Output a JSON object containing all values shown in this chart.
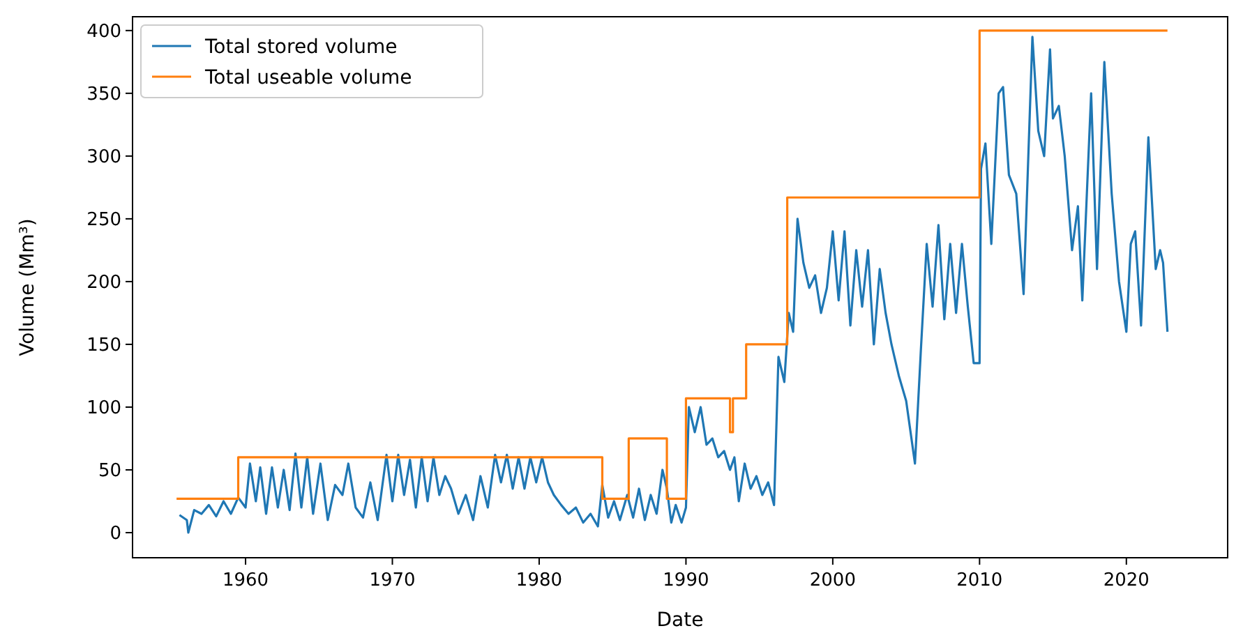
{
  "chart_data": {
    "type": "line",
    "xlabel": "Date",
    "ylabel": "Volume (Mm³)",
    "xlim": [
      1952.3,
      2026.9
    ],
    "ylim": [
      -20,
      411
    ],
    "xticks": [
      1960,
      1970,
      1980,
      1990,
      2000,
      2010,
      2020
    ],
    "yticks": [
      0,
      50,
      100,
      150,
      200,
      250,
      300,
      350,
      400
    ],
    "grid": false,
    "legend": "top left",
    "series": [
      {
        "name": "Total stored volume",
        "color": "#1f77b4",
        "x": [
          1955.5,
          1956,
          1956.1,
          1956.5,
          1957,
          1957.5,
          1958,
          1958.5,
          1959,
          1959.5,
          1960,
          1960.3,
          1960.7,
          1961,
          1961.4,
          1961.8,
          1962.2,
          1962.6,
          1963,
          1963.4,
          1963.8,
          1964.2,
          1964.6,
          1965.1,
          1965.6,
          1966.1,
          1966.6,
          1967,
          1967.5,
          1968,
          1968.5,
          1969,
          1969.6,
          1970,
          1970.4,
          1970.8,
          1971.2,
          1971.6,
          1972,
          1972.4,
          1972.8,
          1973.2,
          1973.6,
          1974,
          1974.5,
          1975,
          1975.5,
          1976,
          1976.5,
          1977,
          1977.4,
          1977.8,
          1978.2,
          1978.6,
          1979,
          1979.4,
          1979.8,
          1980.2,
          1980.6,
          1981,
          1981.5,
          1982,
          1982.5,
          1983,
          1983.5,
          1984,
          1984.3,
          1984.7,
          1985.1,
          1985.5,
          1986,
          1986.4,
          1986.8,
          1987.2,
          1987.6,
          1988,
          1988.4,
          1988.7,
          1989,
          1989.3,
          1989.7,
          1990,
          1990.2,
          1990.6,
          1991,
          1991.4,
          1991.8,
          1992.2,
          1992.6,
          1993,
          1993.3,
          1993.6,
          1994,
          1994.4,
          1994.8,
          1995.2,
          1995.6,
          1996,
          1996.3,
          1996.7,
          1997,
          1997.3,
          1997.6,
          1998,
          1998.4,
          1998.8,
          1999.2,
          1999.6,
          2000,
          2000.4,
          2000.8,
          2001.2,
          2001.6,
          2002,
          2002.4,
          2002.8,
          2003.2,
          2003.6,
          2004,
          2004.5,
          2005,
          2005.6,
          2006,
          2006.4,
          2006.8,
          2007.2,
          2007.6,
          2008,
          2008.4,
          2008.8,
          2009.2,
          2009.6,
          2010,
          2010.1,
          2010.4,
          2010.8,
          2011.3,
          2011.6,
          2012,
          2012.5,
          2013,
          2013.6,
          2014,
          2014.4,
          2014.8,
          2015,
          2015.4,
          2015.8,
          2016.3,
          2016.7,
          2017,
          2017.6,
          2018,
          2018.5,
          2019,
          2019.5,
          2020,
          2020.3,
          2020.6,
          2021,
          2021.5,
          2022,
          2022.3,
          2022.5,
          2022.8
        ],
        "values": [
          14,
          10,
          0,
          18,
          15,
          22,
          13,
          25,
          15,
          28,
          20,
          55,
          25,
          52,
          15,
          52,
          20,
          50,
          18,
          63,
          20,
          60,
          15,
          55,
          10,
          38,
          30,
          55,
          20,
          12,
          40,
          10,
          62,
          25,
          62,
          30,
          58,
          20,
          60,
          25,
          60,
          30,
          45,
          35,
          15,
          30,
          10,
          45,
          20,
          62,
          40,
          62,
          35,
          60,
          35,
          60,
          40,
          60,
          40,
          30,
          22,
          15,
          20,
          8,
          15,
          5,
          38,
          12,
          25,
          10,
          30,
          12,
          35,
          10,
          30,
          15,
          50,
          35,
          8,
          22,
          8,
          20,
          100,
          80,
          100,
          70,
          75,
          60,
          65,
          50,
          60,
          25,
          55,
          35,
          45,
          30,
          40,
          22,
          140,
          120,
          175,
          160,
          250,
          215,
          195,
          205,
          175,
          195,
          240,
          185,
          240,
          165,
          225,
          180,
          225,
          150,
          210,
          175,
          150,
          125,
          105,
          55,
          145,
          230,
          180,
          245,
          170,
          230,
          175,
          230,
          180,
          135,
          135,
          290,
          310,
          230,
          350,
          355,
          285,
          270,
          190,
          395,
          320,
          300,
          385,
          330,
          340,
          300,
          225,
          260,
          185,
          350,
          210,
          375,
          270,
          200,
          160,
          230,
          240,
          165,
          315,
          210,
          225,
          215,
          160
        ]
      },
      {
        "name": "Total useable volume",
        "color": "#ff7f0e",
        "type": "step",
        "x": [
          1955.3,
          1959.5,
          1984.3,
          1986.1,
          1988.7,
          1990.0,
          1993.0,
          1993.2,
          1994.1,
          1996.9,
          2010.0,
          2022.8
        ],
        "values": [
          27,
          60,
          27,
          75,
          27,
          107,
          80,
          107,
          150,
          267,
          400,
          400
        ]
      }
    ]
  }
}
